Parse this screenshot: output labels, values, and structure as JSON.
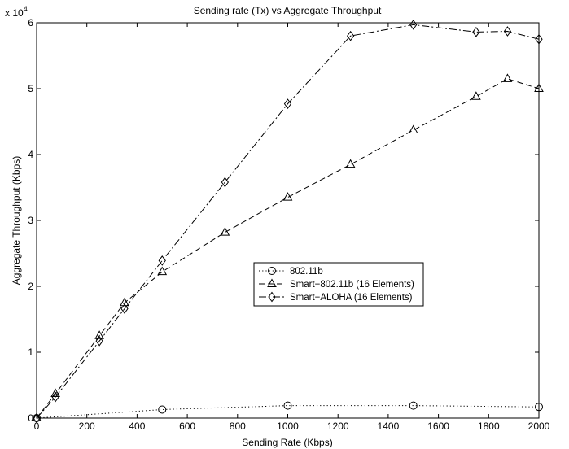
{
  "chart_data": {
    "type": "line",
    "title": "Sending rate (Tx) vs Aggregate Throughput",
    "xlabel": "Sending Rate (Kbps)",
    "ylabel": "Aggregate Throughput (Kbps)",
    "y_multiplier_label": "x 10",
    "y_multiplier_exponent": "4",
    "xlim": [
      0,
      2000
    ],
    "ylim": [
      0,
      60000
    ],
    "x_ticks": [
      0,
      200,
      400,
      600,
      800,
      1000,
      1200,
      1400,
      1600,
      1800,
      2000
    ],
    "y_ticks": [
      0,
      10000,
      20000,
      30000,
      40000,
      50000,
      60000
    ],
    "y_tick_labels": [
      "0",
      "1",
      "2",
      "3",
      "4",
      "5",
      "6"
    ],
    "grid": false,
    "legend_position": "center-right",
    "series": [
      {
        "name": "802.11b",
        "marker": "circle",
        "line_style": "dotted",
        "x": [
          0,
          500,
          1000,
          1500,
          2000
        ],
        "y": [
          0,
          1300,
          1900,
          1900,
          1700
        ]
      },
      {
        "name": "Smart−802.11b (16 Elements)",
        "marker": "triangle",
        "line_style": "dashed",
        "x": [
          0,
          75,
          250,
          350,
          500,
          750,
          1000,
          1250,
          1500,
          1750,
          1875,
          2000
        ],
        "y": [
          0,
          3700,
          12500,
          17500,
          22200,
          28200,
          33500,
          38500,
          43700,
          48800,
          51500,
          50000
        ]
      },
      {
        "name": "Smart−ALOHA (16 Elements)",
        "marker": "diamond",
        "line_style": "dashdot",
        "x": [
          0,
          75,
          250,
          350,
          500,
          750,
          1000,
          1250,
          1500,
          1750,
          1875,
          2000
        ],
        "y": [
          0,
          3200,
          11700,
          16600,
          23900,
          35800,
          47700,
          58000,
          59700,
          58600,
          58700,
          57500
        ]
      }
    ]
  }
}
